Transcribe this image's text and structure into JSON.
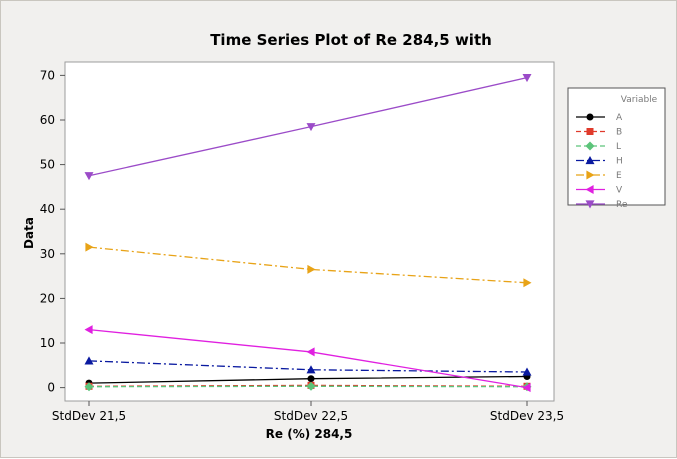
{
  "chart_data": {
    "type": "line",
    "title": "Time Series Plot of Re 284,5 with",
    "xlabel": "Re (%) 284,5",
    "ylabel": "Data",
    "categories": [
      "StdDev 21,5",
      "StdDev 22,5",
      "StdDev 23,5"
    ],
    "ylim": [
      -3,
      73
    ],
    "yticks": [
      0,
      10,
      20,
      30,
      40,
      50,
      60,
      70
    ],
    "grid": false,
    "legend_title": "Variable",
    "legend_position": "right",
    "series": [
      {
        "name": "A",
        "values": [
          1,
          2,
          2.5
        ],
        "color": "#000000",
        "marker": "circle",
        "dash": "solid"
      },
      {
        "name": "B",
        "values": [
          0.3,
          0.5,
          0.3
        ],
        "color": "#e03a2c",
        "marker": "square",
        "dash": "dash"
      },
      {
        "name": "L",
        "values": [
          0.2,
          0.3,
          0.2
        ],
        "color": "#5cc47a",
        "marker": "diamond",
        "dash": "dash"
      },
      {
        "name": "H",
        "values": [
          6,
          4,
          3.5
        ],
        "color": "#0a1aa0",
        "marker": "triangle-up",
        "dash": "dashdot"
      },
      {
        "name": "E",
        "values": [
          31.5,
          26.5,
          23.5
        ],
        "color": "#e8a317",
        "marker": "triangle-right",
        "dash": "dashdot"
      },
      {
        "name": "V",
        "values": [
          13,
          8,
          0
        ],
        "color": "#e020e0",
        "marker": "triangle-left",
        "dash": "solid"
      },
      {
        "name": "Re",
        "values": [
          47.5,
          58.5,
          69.5
        ],
        "color": "#9b4bc8",
        "marker": "triangle-down",
        "dash": "solid"
      }
    ]
  }
}
